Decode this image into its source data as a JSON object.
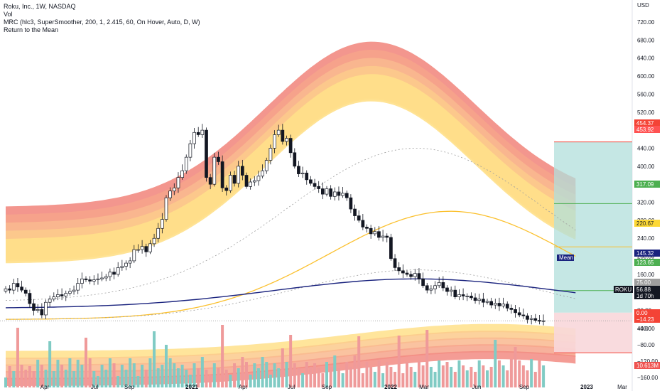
{
  "legend": {
    "line1": "Roku, Inc., 1W, NASDAQ",
    "line2": "Vol",
    "line3": "MRC (hlc3, SuperSmoother, 200, 1, 2.415, 60, On Hover, Auto, D, W)",
    "line4": "Return to the Mean"
  },
  "currency": "USD",
  "chart_data": {
    "type": "candlestick",
    "y_price_ticks": [
      "720.00",
      "680.00",
      "640.00",
      "600.00",
      "560.00",
      "520.00",
      "480.00",
      "440.00",
      "400.00",
      "360.00",
      "320.00",
      "280.00",
      "240.00",
      "200.00",
      "160.00",
      "120.00",
      "80.00",
      "40.00"
    ],
    "y_indicator_ticks": [
      "−40.00",
      "−80.00",
      "−120.00",
      "−160.00"
    ],
    "x_ticks": [
      "Apr",
      "Jul",
      "Sep",
      "2021",
      "Apr",
      "Jul",
      "Sep",
      "2022",
      "Mar",
      "Jun",
      "Sep",
      "2023",
      "Mar"
    ],
    "ylim": [
      -170,
      740
    ],
    "price_closes": [
      128,
      125,
      140,
      132,
      125,
      118,
      95,
      80,
      82,
      70,
      98,
      105,
      110,
      115,
      112,
      118,
      122,
      125,
      140,
      150,
      148,
      145,
      148,
      150,
      152,
      155,
      165,
      160,
      175,
      178,
      185,
      190,
      215,
      215,
      222,
      210,
      228,
      240,
      262,
      282,
      330,
      345,
      352,
      375,
      390,
      420,
      450,
      475,
      470,
      480,
      375,
      360,
      420,
      410,
      352,
      346,
      380,
      362,
      400,
      380,
      355,
      365,
      368,
      378,
      390,
      413,
      440,
      470,
      480,
      455,
      462,
      430,
      400,
      383,
      385,
      370,
      362,
      355,
      350,
      338,
      350,
      333,
      343,
      335,
      340,
      330,
      305,
      290,
      280,
      265,
      262,
      250,
      255,
      242,
      245,
      242,
      195,
      175,
      168,
      163,
      160,
      155,
      162,
      150,
      135,
      125,
      128,
      135,
      142,
      130,
      122,
      125,
      110,
      115,
      112,
      112,
      108,
      102,
      105,
      98,
      100,
      92,
      96,
      90,
      94,
      85,
      82,
      75,
      70,
      68,
      60,
      62,
      58,
      56,
      57
    ],
    "overlays": [
      {
        "name": "Mean",
        "values_note": "MRC mean line"
      },
      {
        "name": "Return to the Mean",
        "values_note": "gold line"
      }
    ],
    "tags": [
      {
        "label": "454.37",
        "color": "#f44336"
      },
      {
        "label": "453.92",
        "color": "#ff5252"
      },
      {
        "label": "317.09",
        "color": "#4caf50"
      },
      {
        "label": "220.67",
        "color": "#fdd835"
      },
      {
        "label": "145.32",
        "color": "#1a237e"
      },
      {
        "label": "Mean",
        "color": "#1a237e"
      },
      {
        "label": "123.65",
        "color": "#4caf50"
      },
      {
        "label": "75.00",
        "color": "#9e9e9e"
      },
      {
        "label": "ROKU",
        "color": "#131722"
      },
      {
        "label": "56.88",
        "color": "#131722"
      },
      {
        "label": "1d 70h",
        "color": "#131722"
      },
      {
        "label": "0.00",
        "color": "#f44336"
      },
      {
        "label": "−14.23",
        "color": "#f44336"
      },
      {
        "label": "10.613M",
        "color": "#ef5350"
      }
    ],
    "colors": {
      "up_candle": "#ffffff",
      "down_candle": "#131722",
      "vol_up": "#80cbc4",
      "vol_down": "#ef9a9a",
      "mean_line": "#1a237e",
      "gold_line": "#fbc02d",
      "band_outer": "#f28b82",
      "band_inner": "#ffe082",
      "target_zone": "#b2dfdb",
      "stop_zone": "#f8d7da"
    }
  }
}
